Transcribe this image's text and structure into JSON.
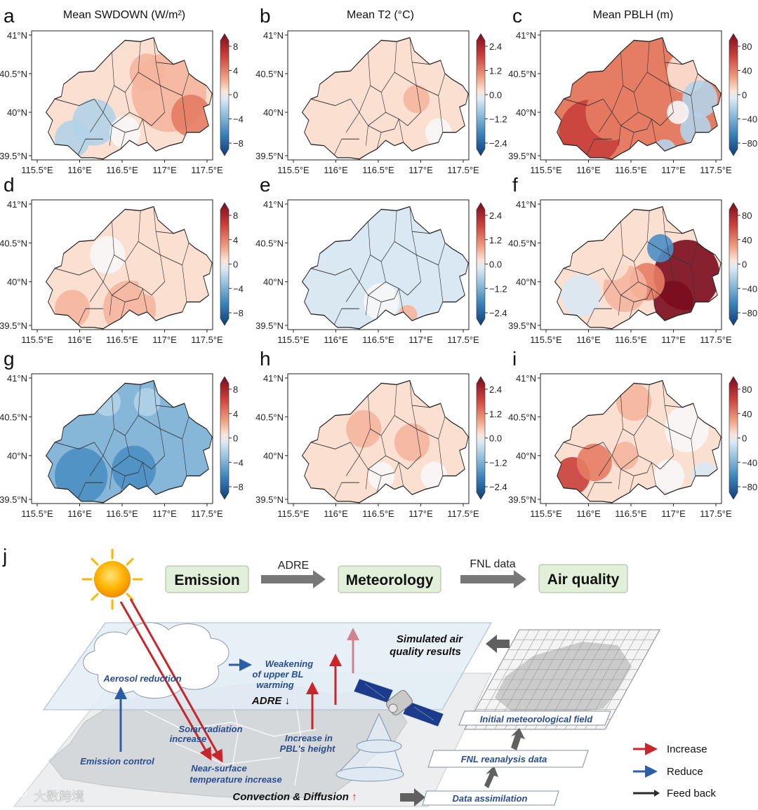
{
  "panels": [
    {
      "letter": "a",
      "title": "Mean SWDOWN (W/m²)",
      "cbar": [
        "8",
        "4",
        "0",
        "−4",
        "−8"
      ],
      "scale": "sw",
      "pattern": "a"
    },
    {
      "letter": "b",
      "title": "Mean T2 (°C)",
      "cbar": [
        "2.4",
        "1.2",
        "0.0",
        "−1.2",
        "−2.4"
      ],
      "scale": "t2",
      "pattern": "b"
    },
    {
      "letter": "c",
      "title": "Mean PBLH (m)",
      "cbar": [
        "80",
        "40",
        "0",
        "−40",
        "−80"
      ],
      "scale": "pb",
      "pattern": "c"
    },
    {
      "letter": "d",
      "title": "",
      "cbar": [
        "8",
        "4",
        "0",
        "−4",
        "−8"
      ],
      "scale": "sw",
      "pattern": "d"
    },
    {
      "letter": "e",
      "title": "",
      "cbar": [
        "2.4",
        "1.2",
        "0.0",
        "−1.2",
        "−2.4"
      ],
      "scale": "t2",
      "pattern": "e"
    },
    {
      "letter": "f",
      "title": "",
      "cbar": [
        "80",
        "40",
        "0",
        "−40",
        "−80"
      ],
      "scale": "pb",
      "pattern": "f"
    },
    {
      "letter": "g",
      "title": "",
      "cbar": [
        "8",
        "4",
        "0",
        "−4",
        "−8"
      ],
      "scale": "sw",
      "pattern": "g"
    },
    {
      "letter": "h",
      "title": "",
      "cbar": [
        "2.4",
        "1.2",
        "0.0",
        "−1.2",
        "−2.4"
      ],
      "scale": "t2",
      "pattern": "h"
    },
    {
      "letter": "i",
      "title": "",
      "cbar": [
        "80",
        "40",
        "0",
        "−40",
        "−80"
      ],
      "scale": "pb",
      "pattern": "i"
    }
  ],
  "axes": {
    "lat_ticks": [
      "41°N",
      "40.5°N",
      "40°N",
      "39.5°N"
    ],
    "lon_ticks": [
      "115.5°E",
      "116°E",
      "116.5°E",
      "117°E",
      "117.5°E"
    ]
  },
  "schematic": {
    "letter": "j",
    "flow": [
      {
        "box": "Emission",
        "arrow": "ADRE"
      },
      {
        "box": "Meteorology",
        "arrow": "FNL data"
      },
      {
        "box": "Air quality",
        "arrow": ""
      }
    ],
    "labels": {
      "aerosol": "Aerosol reduction",
      "weaken1": "Weakening",
      "weaken2": "of upper BL",
      "weaken3": "warming",
      "adre": "ADRE ↓",
      "solar1": "Solar radiation",
      "solar2": "increase",
      "pbl1": "Increase in",
      "pbl2": "PBL's height",
      "emission": "Emission control",
      "nst1": "Near-surface",
      "nst2": "temperature increase",
      "conv": "Convection & Diffusion",
      "conv_arrow": "↑",
      "sim1": "Simulated air",
      "sim2": "quality results",
      "initfield": "Initial meteorological field",
      "fnl": "FNL reanalysis data",
      "assim": "Data assimilation"
    },
    "legend": [
      {
        "label": "Increase",
        "color": "#c8262c"
      },
      {
        "label": "Reduce",
        "color": "#2a5ea8"
      },
      {
        "label": "Feed back",
        "color": "#2b2b2b"
      }
    ]
  },
  "watermark": "大数跨境"
}
